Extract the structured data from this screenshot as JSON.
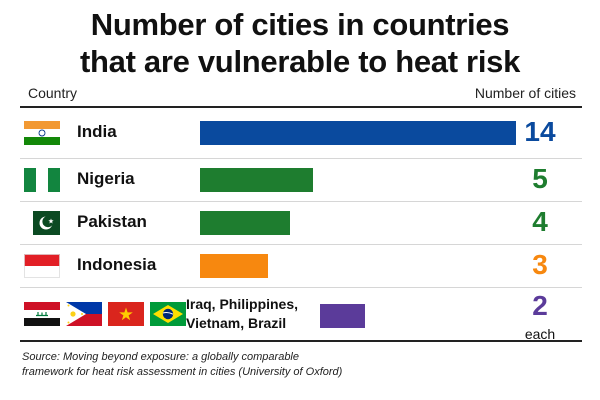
{
  "title_line1": "Number of cities in countries",
  "title_line2": "that are vulnerable to heat risk",
  "header": {
    "country": "Country",
    "value": "Number of cities"
  },
  "chart_data": {
    "type": "bar",
    "title": "Number of cities in countries that are vulnerable to heat risk",
    "categories": [
      "India",
      "Nigeria",
      "Pakistan",
      "Indonesia",
      "Iraq, Philippines, Vietnam, Brazil"
    ],
    "values": [
      14,
      5,
      4,
      3,
      2
    ],
    "value_labels": [
      "14",
      "5",
      "4",
      "3",
      "2"
    ],
    "colors": [
      "#0a4a9e",
      "#1e7d2f",
      "#1e7d2f",
      "#f7880f",
      "#5b3b9a"
    ],
    "xlim": [
      0,
      14
    ],
    "per_row_note": [
      "",
      "",
      "",
      "",
      "each"
    ],
    "flags": [
      [
        "india-flag-icon"
      ],
      [
        "nigeria-flag-icon"
      ],
      [
        "pakistan-flag-icon"
      ],
      [
        "indonesia-flag-icon"
      ],
      [
        "iraq-flag-icon",
        "philippines-flag-icon",
        "vietnam-flag-icon",
        "brazil-flag-icon"
      ]
    ],
    "grid": false,
    "legend": "none"
  },
  "source": "Source: Moving beyond exposure: a globally comparable framework for heat risk assessment in cities (University of Oxford)"
}
